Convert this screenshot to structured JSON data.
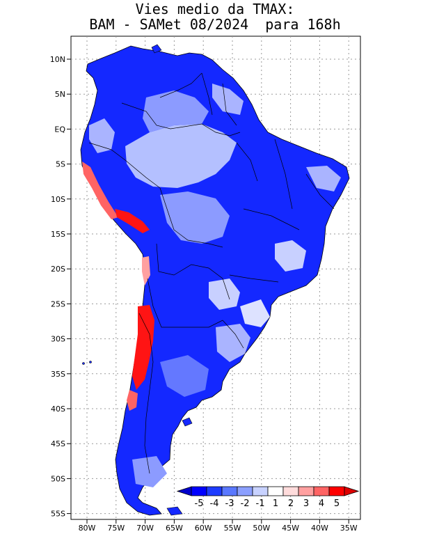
{
  "title": {
    "line1": "Vies medio da TMAX:",
    "line2": "BAM - SAMet 08/2024  para 168h"
  },
  "lat_labels": [
    "10N",
    "5N",
    "EQ",
    "5S",
    "10S",
    "15S",
    "20S",
    "25S",
    "30S",
    "35S",
    "40S",
    "45S",
    "50S",
    "55S"
  ],
  "lon_labels": [
    "80W",
    "75W",
    "70W",
    "65W",
    "60W",
    "55W",
    "50W",
    "45W",
    "40W",
    "35W"
  ],
  "colorbar": {
    "labels": [
      "-5",
      "-4",
      "-3",
      "-2",
      "-1",
      "1",
      "2",
      "3",
      "4",
      "5"
    ],
    "colors": [
      "#0000ff",
      "#1e3cff",
      "#5a78ff",
      "#8ca0ff",
      "#c8d2ff",
      "#ffffff",
      "#ffdcdc",
      "#ffa0a0",
      "#ff6464",
      "#ff0000"
    ]
  },
  "colors": {
    "deep_blue": "#0a14f0",
    "mid_blue": "#3c50ff",
    "light_blue": "#8c9bff",
    "pale_blue": "#c8d0ff",
    "red": "#ff1414"
  }
}
